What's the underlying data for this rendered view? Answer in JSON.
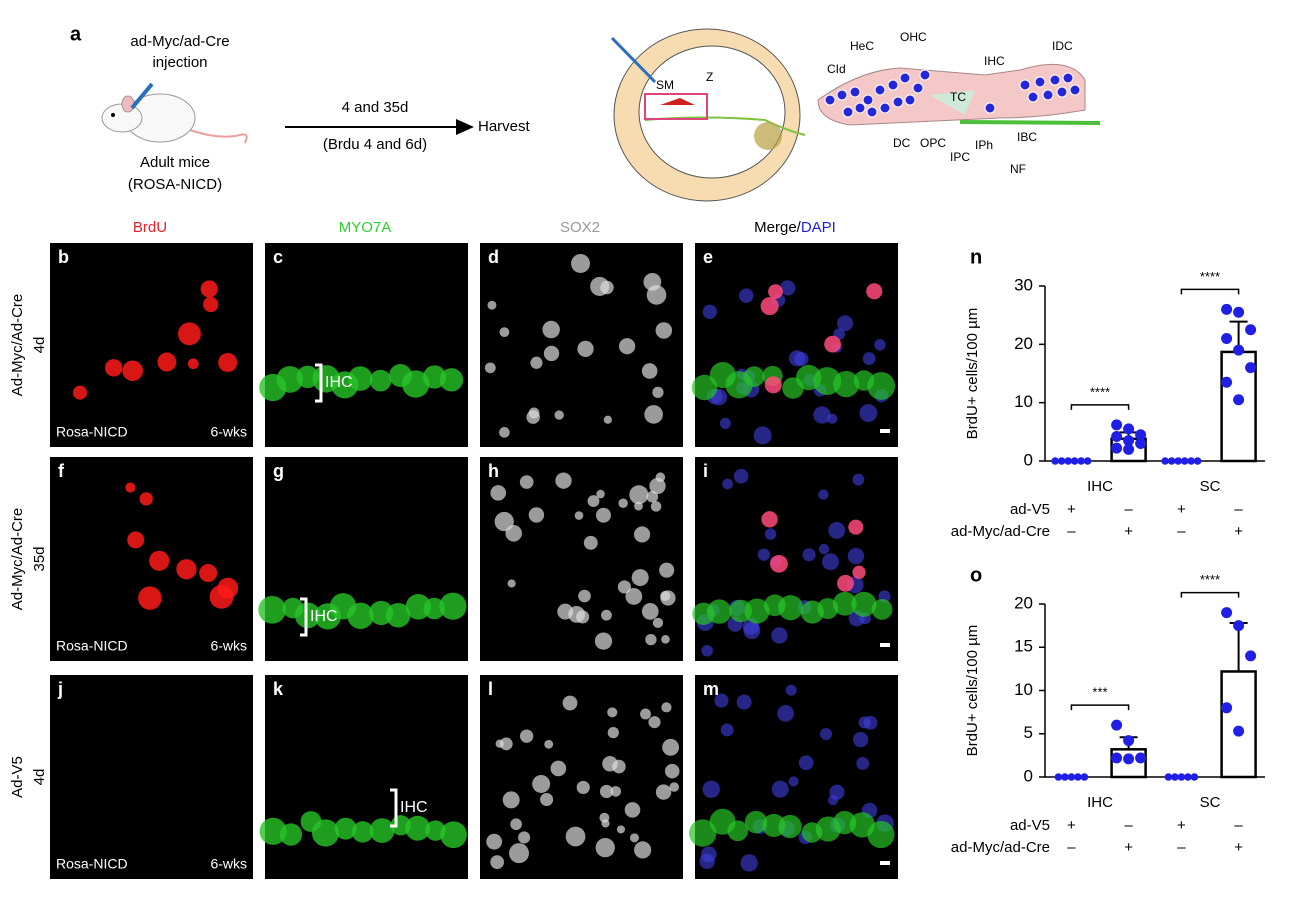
{
  "panel_a": {
    "letter": "a",
    "injection": "ad-Myc/ad-Cre",
    "injection_2": "injection",
    "mice": "Adult mice",
    "strain": "(ROSA-NICD)",
    "timepoints": "4 and 35d",
    "brdu": "(Brdu 4 and 6d)",
    "harvest": "Harvest",
    "cochlea_labels": [
      "SM",
      "Z"
    ],
    "corti_labels": [
      "HeC",
      "OHC",
      "IHC",
      "IDC",
      "CId",
      "TC",
      "DC",
      "OPC",
      "IPC",
      "IPh",
      "IBC",
      "NF"
    ]
  },
  "micrographs": {
    "columns": [
      "BrdU",
      "MYO7A",
      "SOX2"
    ],
    "merge": "Merge/",
    "dapi": "DAPI",
    "rows": [
      {
        "label": "Ad-Myc/Ad-Cre",
        "time": "4d",
        "letters": [
          "b",
          "c",
          "d",
          "e"
        ]
      },
      {
        "label": "Ad-Myc/Ad-Cre",
        "time": "35d",
        "letters": [
          "f",
          "g",
          "h",
          "i"
        ]
      },
      {
        "label": "Ad-V5",
        "time": "4d",
        "letters": [
          "j",
          "k",
          "l",
          "m"
        ]
      }
    ],
    "mouse": "Rosa-NICD",
    "age": "6-wks",
    "ihc": "IHC"
  },
  "chart_data": [
    {
      "type": "bar",
      "letter": "n",
      "ylabel": "BrdU+ cells/100 µm",
      "categories": [
        "IHC",
        "SC"
      ],
      "ylim": [
        0,
        30
      ],
      "yticks": [
        0,
        10,
        20,
        30
      ],
      "bar_color": "#ffffff",
      "point_color": "#1f1fe6",
      "significance": [
        "****",
        "****"
      ],
      "series": [
        {
          "name": "ad-V5",
          "values": [
            0,
            0
          ],
          "errors": [
            0,
            0
          ],
          "points": [
            [
              0,
              0,
              0,
              0,
              0,
              0
            ],
            [
              0,
              0,
              0,
              0,
              0,
              0
            ]
          ]
        },
        {
          "name": "ad-Myc/ad-Cre",
          "values": [
            3.8,
            18.7
          ],
          "errors": [
            1.1,
            5.2
          ],
          "points": [
            [
              6.2,
              5.5,
              4.5,
              4.2,
              3.5,
              3.0,
              2.2,
              2.0
            ],
            [
              26,
              25.5,
              22.5,
              21,
              19,
              16,
              13.5,
              10.5
            ]
          ]
        }
      ],
      "signs": [
        [
          "+",
          "–",
          "+",
          "–"
        ],
        [
          "–",
          "+",
          "–",
          "+"
        ]
      ]
    },
    {
      "type": "bar",
      "letter": "o",
      "ylabel": "BrdU+ cells/100 µm",
      "categories": [
        "IHC",
        "SC"
      ],
      "ylim": [
        0,
        20
      ],
      "yticks": [
        0,
        5,
        10,
        15,
        20
      ],
      "bar_color": "#ffffff",
      "point_color": "#1f1fe6",
      "significance": [
        "***",
        "****"
      ],
      "series": [
        {
          "name": "ad-V5",
          "values": [
            0,
            0
          ],
          "errors": [
            0,
            0
          ],
          "points": [
            [
              0,
              0,
              0,
              0,
              0
            ],
            [
              0,
              0,
              0,
              0,
              0
            ]
          ]
        },
        {
          "name": "ad-Myc/ad-Cre",
          "values": [
            3.2,
            12.2
          ],
          "errors": [
            1.4,
            5.6
          ],
          "points": [
            [
              6.0,
              4.2,
              2.2,
              2.2,
              2.1
            ],
            [
              19.0,
              17.5,
              14.0,
              8.0,
              5.3
            ]
          ]
        }
      ],
      "signs": [
        [
          "+",
          "–",
          "+",
          "–"
        ],
        [
          "–",
          "+",
          "–",
          "+"
        ]
      ]
    }
  ]
}
